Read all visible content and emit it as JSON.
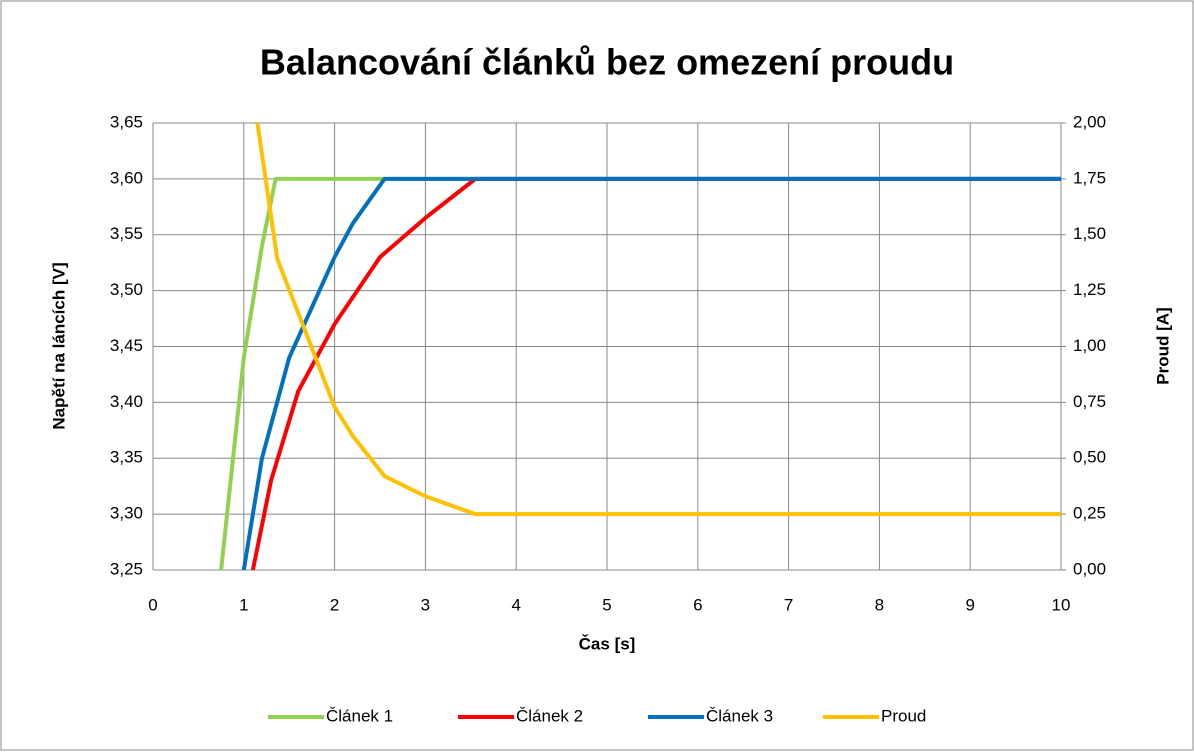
{
  "chart_data": {
    "type": "line",
    "title": "Balancování článků bez omezení proudu",
    "xlabel": "Čas [s]",
    "ylabel": "Napětí na láncích [V]",
    "y2label": "Proud [A]",
    "xlim": [
      0,
      10
    ],
    "xticks": [
      0,
      1,
      2,
      3,
      4,
      5,
      6,
      7,
      8,
      9,
      10
    ],
    "ylim": [
      3.25,
      3.65
    ],
    "yticks": [
      {
        "value": 3.25,
        "label": "3,25"
      },
      {
        "value": 3.3,
        "label": "3,30"
      },
      {
        "value": 3.35,
        "label": "3,35"
      },
      {
        "value": 3.4,
        "label": "3,40"
      },
      {
        "value": 3.45,
        "label": "3,45"
      },
      {
        "value": 3.5,
        "label": "3,50"
      },
      {
        "value": 3.55,
        "label": "3,55"
      },
      {
        "value": 3.6,
        "label": "3,60"
      },
      {
        "value": 3.65,
        "label": "3,65"
      }
    ],
    "y2lim": [
      0,
      2
    ],
    "y2ticks": [
      {
        "value": 0,
        "label": "0,00"
      },
      {
        "value": 0.25,
        "label": "0,25"
      },
      {
        "value": 0.5,
        "label": "0,50"
      },
      {
        "value": 0.75,
        "label": "0,75"
      },
      {
        "value": 1,
        "label": "1,00"
      },
      {
        "value": 1.25,
        "label": "1,25"
      },
      {
        "value": 1.5,
        "label": "1,50"
      },
      {
        "value": 1.75,
        "label": "1,75"
      },
      {
        "value": 2,
        "label": "2,00"
      }
    ],
    "grid": true,
    "legend": "bottom",
    "series": [
      {
        "name": "Článek 1",
        "color": "#92d050",
        "x": [
          0.75,
          1.0,
          1.2,
          1.35,
          2.55,
          10
        ],
        "values": [
          3.25,
          3.44,
          3.54,
          3.6,
          3.6,
          3.6
        ]
      },
      {
        "name": "Článek 2",
        "color": "#ff0000",
        "x": [
          1.1,
          1.3,
          1.6,
          2.0,
          2.5,
          3.0,
          3.55,
          10
        ],
        "values": [
          3.25,
          3.33,
          3.41,
          3.47,
          3.53,
          3.565,
          3.6,
          3.6
        ]
      },
      {
        "name": "Článek 3",
        "color": "#0070c0",
        "x": [
          1.0,
          1.2,
          1.5,
          2.0,
          2.2,
          2.55,
          10
        ],
        "values": [
          3.25,
          3.35,
          3.44,
          3.53,
          3.56,
          3.6,
          3.6
        ]
      },
      {
        "name": "Proud",
        "color": "#ffc000",
        "axis": "y2",
        "x": [
          1.15,
          1.37,
          1.6,
          2.0,
          2.2,
          2.55,
          3.0,
          3.55,
          10
        ],
        "values": [
          2.0,
          1.39,
          1.15,
          0.73,
          0.6,
          0.42,
          0.33,
          0.25,
          0.25
        ]
      }
    ]
  }
}
